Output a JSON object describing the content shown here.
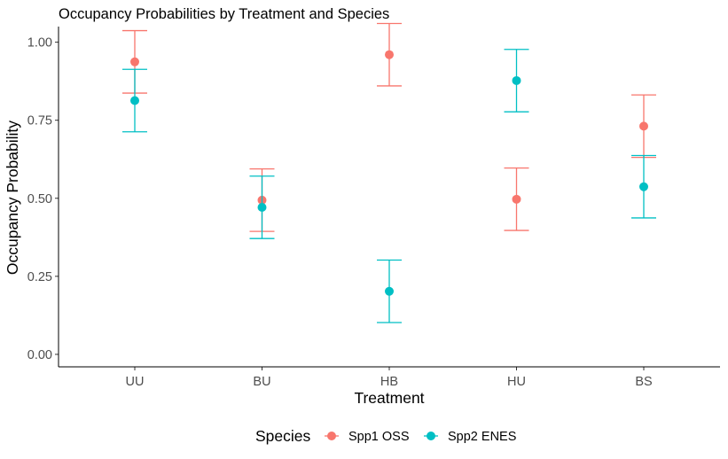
{
  "chart_data": {
    "type": "scatter",
    "title": "Occupancy Probabilities by Treatment and Species",
    "xlabel": "Treatment",
    "ylabel": "Occupancy Probability",
    "categories": [
      "UU",
      "BU",
      "HB",
      "HU",
      "BS"
    ],
    "ylim": [
      -0.04,
      1.05
    ],
    "yticks": [
      0.0,
      0.25,
      0.5,
      0.75,
      1.0
    ],
    "ytick_labels": [
      "0.00",
      "0.25",
      "0.50",
      "0.75",
      "1.00"
    ],
    "grid": false,
    "error_bars": true,
    "legend": {
      "title": "Species",
      "position": "bottom"
    },
    "series": [
      {
        "name": "Spp1 OSS",
        "color": "#F8766D",
        "values": [
          0.937,
          0.494,
          0.96,
          0.497,
          0.731
        ],
        "lower": [
          0.837,
          0.394,
          0.86,
          0.397,
          0.631
        ],
        "upper": [
          1.037,
          0.594,
          1.06,
          0.597,
          0.831
        ]
      },
      {
        "name": "Spp2 ENES",
        "color": "#00BFC4",
        "values": [
          0.813,
          0.471,
          0.202,
          0.877,
          0.537
        ],
        "lower": [
          0.713,
          0.371,
          0.102,
          0.777,
          0.437
        ],
        "upper": [
          0.913,
          0.571,
          0.302,
          0.977,
          0.637
        ]
      }
    ]
  }
}
